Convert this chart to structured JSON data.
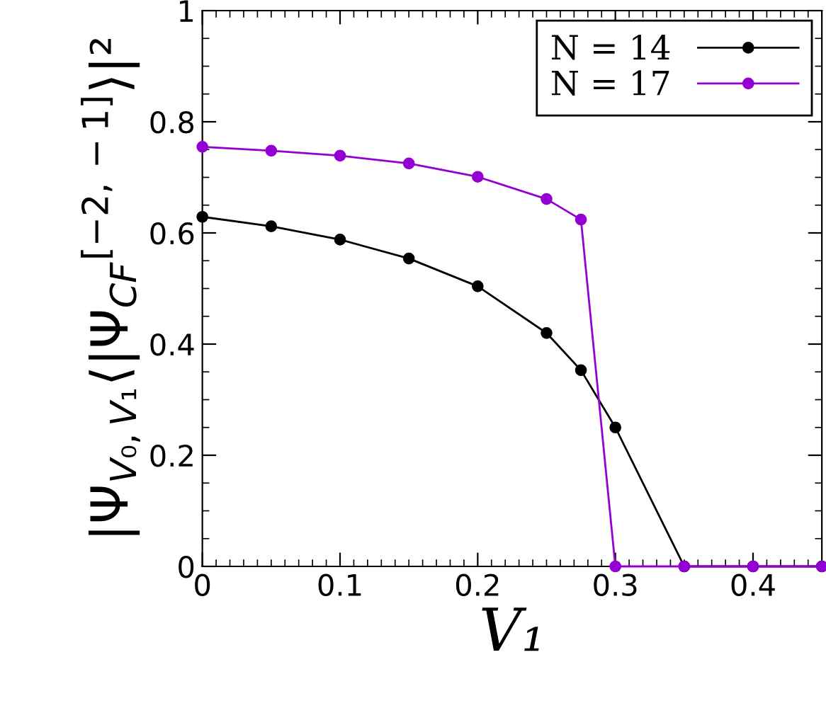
{
  "chart_data": {
    "type": "line",
    "xlabel": "V₁",
    "ylabel": "|Ψ$_{V₀,V₁}$⟨|Ψ$_{CF}$$^{[−2,−1]}$⟩|²",
    "x": [
      0,
      0.05,
      0.1,
      0.15,
      0.2,
      0.25,
      0.275,
      0.3,
      0.35,
      0.4,
      0.45
    ],
    "series": [
      {
        "name": "N = 14",
        "color": "#000000",
        "values": [
          0.629,
          0.612,
          0.588,
          0.554,
          0.504,
          0.42,
          0.353,
          0.25,
          0,
          0,
          0
        ]
      },
      {
        "name": "N = 17",
        "color": "#9400d3",
        "values": [
          0.755,
          0.748,
          0.739,
          0.725,
          0.701,
          0.661,
          0.624,
          0,
          0,
          0,
          0
        ]
      }
    ],
    "xlim": [
      0,
      0.45
    ],
    "ylim": [
      0,
      1
    ],
    "xticks": [
      0,
      0.1,
      0.2,
      0.3,
      0.4
    ],
    "yticks": [
      0,
      0.2,
      0.4,
      0.6,
      0.8,
      1
    ],
    "marker": "circle",
    "line_style": "solid",
    "grid": false,
    "legend": "top right"
  }
}
